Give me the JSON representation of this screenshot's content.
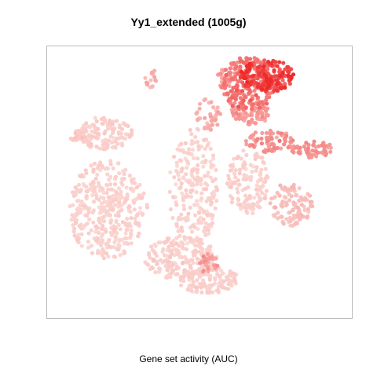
{
  "chart_data": {
    "type": "scatter",
    "title": "Yy1_extended (1005g)",
    "xlabel": "Gene set activity (AUC)",
    "ylabel": "",
    "grid": false,
    "legend": "none",
    "colors": {
      "low": "#FBDCD8",
      "high": "#EE2A2A",
      "frame": "#BBBBBB"
    },
    "clusters": [
      {
        "cx": 0.2,
        "cy": 0.6,
        "rx": 0.13,
        "ry": 0.18,
        "n": 380,
        "auc": 0.05
      },
      {
        "cx": 0.19,
        "cy": 0.32,
        "rx": 0.09,
        "ry": 0.06,
        "n": 130,
        "auc": 0.06
      },
      {
        "cx": 0.1,
        "cy": 0.33,
        "rx": 0.03,
        "ry": 0.02,
        "n": 20,
        "auc": 0.1
      },
      {
        "cx": 0.48,
        "cy": 0.52,
        "rx": 0.08,
        "ry": 0.22,
        "n": 240,
        "auc": 0.05
      },
      {
        "cx": 0.44,
        "cy": 0.78,
        "rx": 0.12,
        "ry": 0.08,
        "n": 200,
        "auc": 0.06
      },
      {
        "cx": 0.53,
        "cy": 0.86,
        "rx": 0.1,
        "ry": 0.05,
        "n": 120,
        "auc": 0.06
      },
      {
        "cx": 0.66,
        "cy": 0.5,
        "rx": 0.07,
        "ry": 0.12,
        "n": 130,
        "auc": 0.06
      },
      {
        "cx": 0.53,
        "cy": 0.25,
        "rx": 0.04,
        "ry": 0.06,
        "n": 40,
        "auc": 0.25
      },
      {
        "cx": 0.58,
        "cy": 0.12,
        "rx": 0.03,
        "ry": 0.04,
        "n": 25,
        "auc": 0.3
      },
      {
        "cx": 0.66,
        "cy": 0.14,
        "rx": 0.09,
        "ry": 0.1,
        "n": 230,
        "auc": 0.55
      },
      {
        "cx": 0.72,
        "cy": 0.11,
        "rx": 0.09,
        "ry": 0.06,
        "n": 180,
        "auc": 0.85
      },
      {
        "cx": 0.67,
        "cy": 0.25,
        "rx": 0.07,
        "ry": 0.04,
        "n": 70,
        "auc": 0.35
      },
      {
        "cx": 0.73,
        "cy": 0.35,
        "rx": 0.08,
        "ry": 0.04,
        "n": 70,
        "auc": 0.4
      },
      {
        "cx": 0.87,
        "cy": 0.38,
        "rx": 0.07,
        "ry": 0.03,
        "n": 55,
        "auc": 0.4
      },
      {
        "cx": 0.8,
        "cy": 0.58,
        "rx": 0.07,
        "ry": 0.08,
        "n": 110,
        "auc": 0.15
      },
      {
        "cx": 0.53,
        "cy": 0.8,
        "rx": 0.03,
        "ry": 0.04,
        "n": 30,
        "auc": 0.35
      },
      {
        "cx": 0.34,
        "cy": 0.12,
        "rx": 0.02,
        "ry": 0.04,
        "n": 15,
        "auc": 0.25
      }
    ]
  }
}
